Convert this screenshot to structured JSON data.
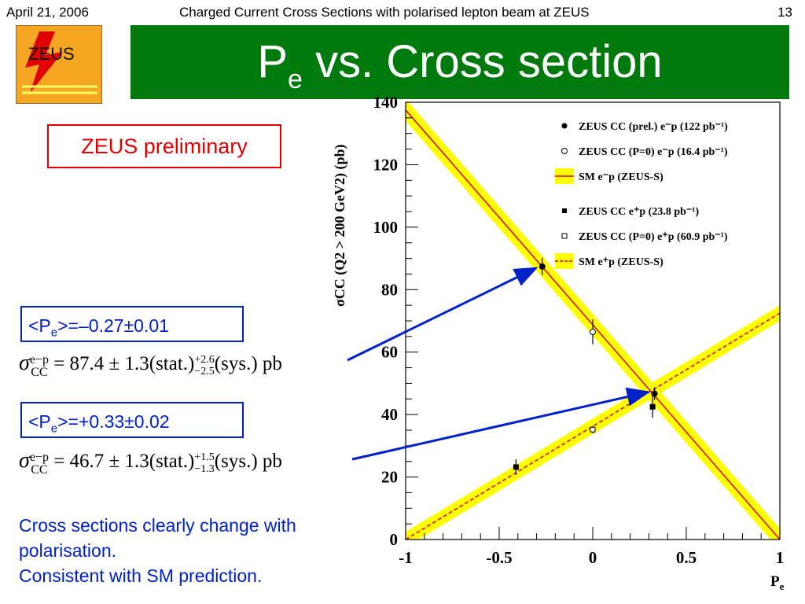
{
  "header": {
    "date": "April 21, 2006",
    "title": "Charged Current Cross Sections with polarised lepton beam at ZEUS",
    "page": "13"
  },
  "logo": {
    "text": "ZEUS"
  },
  "slide_title": {
    "main": "P",
    "sub": "e",
    "rest": " vs. Cross section"
  },
  "preliminary": "ZEUS preliminary",
  "polarisations": [
    {
      "label": "<P",
      "sub": "e",
      "value": ">=–0.27±0.01",
      "formula_sup": "e−p",
      "formula_sub": "CC",
      "formula_value": " = 87.4 ± 1.3(stat.)",
      "err_up": "+2.6",
      "err_dn": "−2.5",
      "formula_tail": "(sys.)  pb"
    },
    {
      "label": "<P",
      "sub": "e",
      "value": ">=+0.33±0.02",
      "formula_sup": "e−p",
      "formula_sub": "CC",
      "formula_value": " = 46.7 ± 1.3(stat.)",
      "err_up": "+1.5",
      "err_dn": "−1.3",
      "formula_tail": "(sys.)  pb"
    }
  ],
  "note": {
    "line1": "Cross sections clearly change with",
    "line2": "polarisation.",
    "line3": "Consistent with SM prediction."
  },
  "colors": {
    "title_bg": "#007a0c",
    "red_box": "#e00000",
    "blue": "#0020c8",
    "band": "#ffff00",
    "sm_line": "#e00000",
    "arrow": "#0020c8"
  },
  "chart_data": {
    "type": "scatter",
    "xlabel": "P",
    "xlabel_sub": "e",
    "ylabel": "σCC (Q2 > 200 GeV2) (pb)",
    "xlim": [
      -1,
      1
    ],
    "ylim": [
      0,
      140
    ],
    "x_ticks": [
      "-1",
      "-0.5",
      "0",
      "0.5",
      "1"
    ],
    "y_ticks": [
      "0",
      "20",
      "40",
      "60",
      "80",
      "100",
      "120",
      "140"
    ],
    "grid": false,
    "legend_position": "top-right",
    "series": [
      {
        "name": "ZEUS CC (prel.) e⁻p (122 pb⁻¹)",
        "marker": "filled-circle",
        "points": [
          {
            "x": -0.27,
            "y": 87.4,
            "err": 2.8
          },
          {
            "x": 0.33,
            "y": 46.7,
            "err": 2.0
          }
        ]
      },
      {
        "name": "ZEUS CC (P=0) e⁻p (16.4 pb⁻¹)",
        "marker": "open-circle",
        "points": [
          {
            "x": 0.0,
            "y": 66.5,
            "err": 4.0
          }
        ]
      },
      {
        "name": "SM e⁻p (ZEUS-S)",
        "marker": "line-band",
        "line": "solid",
        "line_points": [
          {
            "x": -1,
            "y": 137.5
          },
          {
            "x": 1,
            "y": 0
          }
        ],
        "band_half_width": 3.5
      },
      {
        "name": "ZEUS CC e⁺p (23.8 pb⁻¹)",
        "marker": "filled-square",
        "points": [
          {
            "x": -0.41,
            "y": 23.2,
            "err": 2.5
          },
          {
            "x": 0.32,
            "y": 42.5,
            "err": 3.5
          }
        ]
      },
      {
        "name": "ZEUS CC (P=0) e⁺p (60.9 pb⁻¹)",
        "marker": "open-square",
        "points": [
          {
            "x": 0.0,
            "y": 35.2,
            "err": 1.2
          }
        ]
      },
      {
        "name": "SM e⁺p (ZEUS-S)",
        "marker": "line-band",
        "line": "dashed",
        "line_points": [
          {
            "x": -1,
            "y": 0
          },
          {
            "x": 1,
            "y": 72.5
          }
        ],
        "band_half_width": 2.5
      }
    ]
  }
}
